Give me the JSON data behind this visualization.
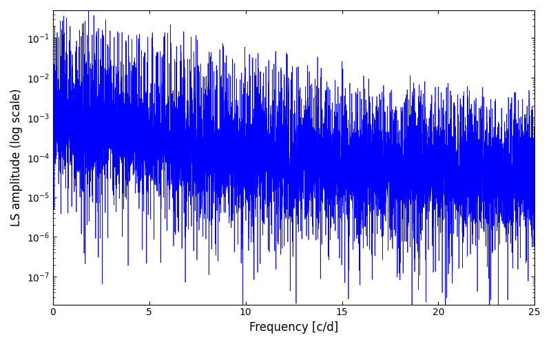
{
  "title": "",
  "xlabel": "Frequency [c/d]",
  "ylabel": "LS amplitude (log scale)",
  "xlim": [
    0,
    25
  ],
  "ylim": [
    2e-08,
    0.5
  ],
  "line_color": "#0000ff",
  "linewidth": 0.5,
  "yscale": "log",
  "yticks": [
    1e-07,
    1e-06,
    1e-05,
    0.0001,
    0.001,
    0.01,
    0.1
  ],
  "xticks": [
    0,
    5,
    10,
    15,
    20,
    25
  ],
  "seed": 137,
  "n_points": 8000,
  "freq_max": 25.0,
  "figsize": [
    8.0,
    5.0
  ],
  "dpi": 100
}
